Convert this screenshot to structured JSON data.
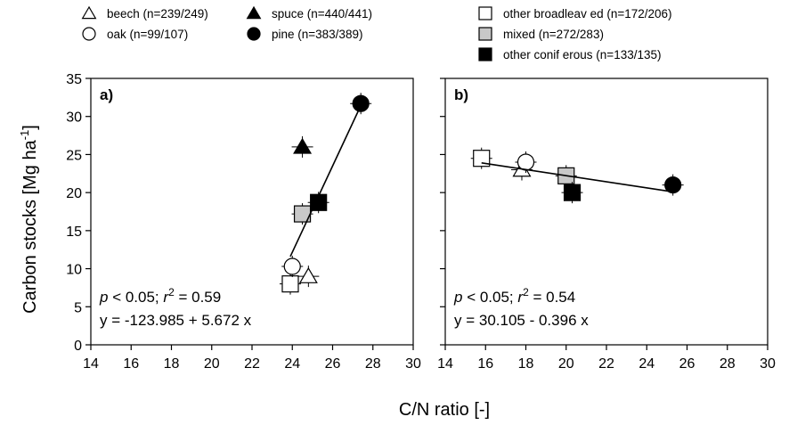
{
  "chart_data": {
    "type": "scatter",
    "xlabel": "C/N ratio [-]",
    "ylabel": "Carbon stocks [Mg ha-1]",
    "ylabel_main": "Carbon stocks [Mg ha",
    "ylabel_sup": "-1",
    "ylabel_end": "]",
    "ylim": [
      0,
      35
    ],
    "y_ticks": [
      "0",
      "5",
      "10",
      "15",
      "20",
      "25",
      "30",
      "35"
    ],
    "legend": [
      {
        "name": "beech (n=239/249)",
        "marker": "triangle-open"
      },
      {
        "name": "spuce (n=440/441)",
        "marker": "triangle-filled"
      },
      {
        "name": "other broadleav ed (n=172/206)",
        "marker": "square-open"
      },
      {
        "name": "oak (n=99/107)",
        "marker": "circle-open"
      },
      {
        "name": "pine (n=383/389)",
        "marker": "circle-filled"
      },
      {
        "name": "mixed (n=272/283)",
        "marker": "square-gray"
      },
      {
        "name": "other conif erous (n=133/135)",
        "marker": "square-filled"
      }
    ],
    "panels": [
      {
        "label": "a)",
        "xlim": [
          14,
          30
        ],
        "x_ticks": [
          "14",
          "16",
          "18",
          "20",
          "22",
          "24",
          "26",
          "28",
          "30"
        ],
        "points": [
          {
            "marker": "square-open",
            "x": 23.9,
            "y": 8.0
          },
          {
            "marker": "triangle-open",
            "x": 24.8,
            "y": 9.0
          },
          {
            "marker": "circle-open",
            "x": 24.0,
            "y": 10.3
          },
          {
            "marker": "square-gray",
            "x": 24.5,
            "y": 17.2
          },
          {
            "marker": "square-filled",
            "x": 25.3,
            "y": 18.7
          },
          {
            "marker": "triangle-filled",
            "x": 24.5,
            "y": 26.0
          },
          {
            "marker": "circle-filled",
            "x": 27.4,
            "y": 31.7
          }
        ],
        "fit_line": {
          "x": [
            23.9,
            27.5
          ],
          "y": [
            11.6,
            32.0
          ]
        },
        "stats_text_p": "p",
        "stats_text_mid": " < 0.05; ",
        "stats_text_r": "r",
        "stats_text_sup": "2",
        "stats_text_end": " = 0.59",
        "equation": "y = -123.985 + 5.672 x"
      },
      {
        "label": "b)",
        "xlim": [
          14,
          30
        ],
        "x_ticks": [
          "14",
          "16",
          "18",
          "20",
          "22",
          "24",
          "26",
          "28",
          "30"
        ],
        "points": [
          {
            "marker": "square-open",
            "x": 15.8,
            "y": 24.5
          },
          {
            "marker": "triangle-open",
            "x": 17.8,
            "y": 23.0
          },
          {
            "marker": "circle-open",
            "x": 18.0,
            "y": 24.0
          },
          {
            "marker": "square-gray",
            "x": 20.0,
            "y": 22.2
          },
          {
            "marker": "square-filled",
            "x": 20.3,
            "y": 20.0
          },
          {
            "marker": "circle-filled",
            "x": 25.3,
            "y": 21.0
          }
        ],
        "fit_line": {
          "x": [
            15.8,
            25.3
          ],
          "y": [
            23.9,
            20.1
          ]
        },
        "stats_text_p": "p",
        "stats_text_mid": " < 0.05; ",
        "stats_text_r": "r",
        "stats_text_sup": "2",
        "stats_text_end": " = 0.54",
        "equation": "y = 30.105 - 0.396 x"
      }
    ]
  }
}
